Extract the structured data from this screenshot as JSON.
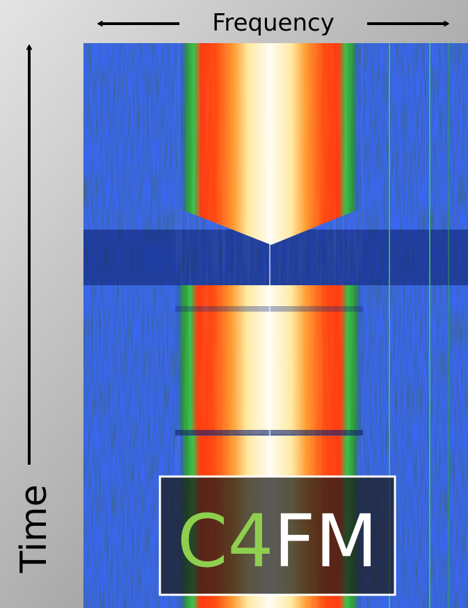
{
  "labels": {
    "x_axis": "Frequency",
    "y_axis": "Time"
  },
  "badge": {
    "highlight": "C4",
    "rest": "FM"
  }
}
